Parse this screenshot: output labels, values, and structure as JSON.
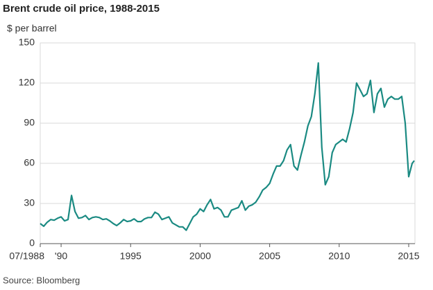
{
  "chart_data": {
    "type": "line",
    "title": "Brent crude oil price, 1988-2015",
    "y_label": "$ per barrel",
    "source": "Source: Bloomberg",
    "xlim": [
      1988.5,
      2015.45
    ],
    "xticks": [
      {
        "value": 1988.5,
        "label": "07/1988"
      },
      {
        "value": 1990,
        "label": "'90"
      },
      1995,
      2000,
      2005,
      2010,
      2015
    ],
    "ylim": [
      0,
      150
    ],
    "yticks": [
      0,
      30,
      60,
      90,
      120,
      150
    ],
    "grid": true,
    "series": [
      {
        "name": "Brent",
        "color": "#1a8a82",
        "x": [
          1988.5,
          1988.75,
          1989,
          1989.25,
          1989.5,
          1989.75,
          1990,
          1990.25,
          1990.5,
          1990.75,
          1991,
          1991.25,
          1991.5,
          1991.75,
          1992,
          1992.25,
          1992.5,
          1992.75,
          1993,
          1993.25,
          1993.5,
          1993.75,
          1994,
          1994.25,
          1994.5,
          1994.75,
          1995,
          1995.25,
          1995.5,
          1995.75,
          1996,
          1996.25,
          1996.5,
          1996.75,
          1997,
          1997.25,
          1997.5,
          1997.75,
          1998,
          1998.25,
          1998.5,
          1998.75,
          1999,
          1999.25,
          1999.5,
          1999.75,
          2000,
          2000.25,
          2000.5,
          2000.75,
          2001,
          2001.25,
          2001.5,
          2001.75,
          2002,
          2002.25,
          2002.5,
          2002.75,
          2003,
          2003.25,
          2003.5,
          2003.75,
          2004,
          2004.25,
          2004.5,
          2004.75,
          2005,
          2005.25,
          2005.5,
          2005.75,
          2006,
          2006.25,
          2006.5,
          2006.75,
          2007,
          2007.25,
          2007.5,
          2007.75,
          2008,
          2008.25,
          2008.5,
          2008.75,
          2009,
          2009.25,
          2009.5,
          2009.75,
          2010,
          2010.25,
          2010.5,
          2010.75,
          2011,
          2011.25,
          2011.5,
          2011.75,
          2012,
          2012.25,
          2012.5,
          2012.75,
          2013,
          2013.25,
          2013.5,
          2013.75,
          2014,
          2014.25,
          2014.5,
          2014.75,
          2015,
          2015.25,
          2015.4
        ],
        "values": [
          15,
          13,
          16,
          18,
          17.5,
          19,
          20,
          17,
          18,
          36,
          24,
          19,
          19.5,
          21,
          18,
          19.5,
          20,
          19.5,
          18,
          18.5,
          17,
          15,
          13.5,
          15.5,
          18,
          16.5,
          17,
          18.5,
          16.5,
          16.5,
          18.5,
          19.5,
          19.5,
          23.5,
          22,
          18,
          19,
          20,
          15.5,
          14,
          12.5,
          12.5,
          10,
          15,
          20,
          22,
          26,
          24,
          29,
          33,
          26,
          27,
          25,
          20,
          20,
          25,
          26,
          27,
          32,
          25,
          28,
          29,
          31,
          35,
          40,
          42,
          45,
          52,
          58,
          58,
          62,
          70,
          74,
          58,
          55,
          66,
          76,
          88,
          95,
          112,
          135,
          72,
          44,
          50,
          68,
          74,
          76,
          78,
          76,
          86,
          98,
          120,
          115,
          110,
          112,
          122,
          98,
          112,
          116,
          102,
          108,
          110,
          108,
          108,
          110,
          90,
          50,
          60,
          62
        ]
      }
    ]
  }
}
